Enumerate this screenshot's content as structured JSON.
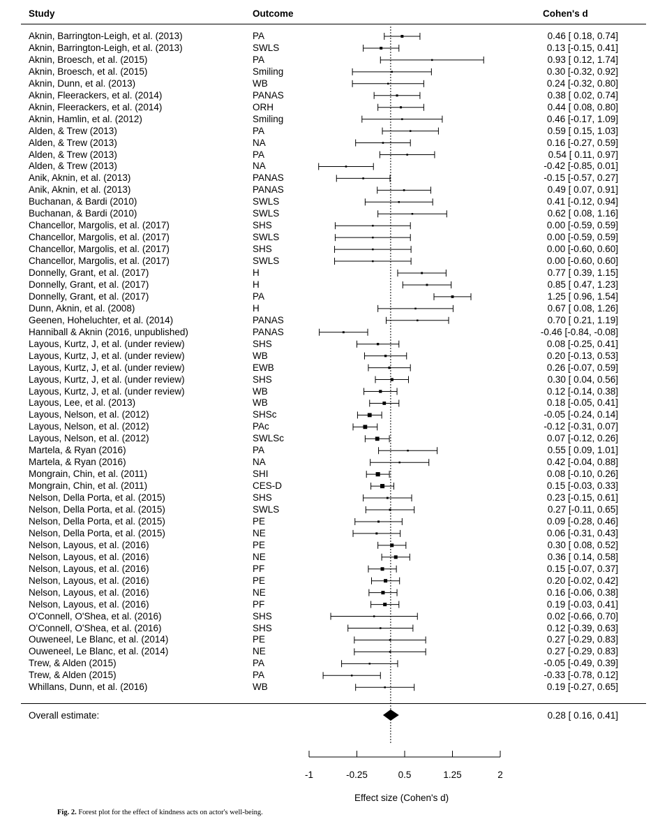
{
  "header": {
    "study": "Study",
    "outcome": "Outcome",
    "effect": "Cohen's d"
  },
  "chart_data": {
    "type": "forest",
    "xlabel": "Effect size (Cohen's d)",
    "xticks": [
      -1,
      -0.25,
      0.5,
      1.25,
      2
    ],
    "xtick_labels": [
      "-1",
      "-0.25",
      "0.5",
      "1.25",
      "2"
    ],
    "reference_line": 0.28,
    "rows": [
      {
        "study": "Aknin, Barrington-Leigh, et al. (2013)",
        "outcome": "PA",
        "d": 0.46,
        "lo": 0.18,
        "hi": 0.74,
        "ci": "0.46 [ 0.18,  0.74]"
      },
      {
        "study": "Aknin, Barrington-Leigh, et al. (2013)",
        "outcome": "SWLS",
        "d": 0.13,
        "lo": -0.15,
        "hi": 0.41,
        "ci": "0.13 [-0.15,  0.41]"
      },
      {
        "study": "Aknin, Broesch, et al. (2015)",
        "outcome": "PA",
        "d": 0.93,
        "lo": 0.12,
        "hi": 1.74,
        "ci": "0.93 [ 0.12,  1.74]"
      },
      {
        "study": "Aknin, Broesch, et al. (2015)",
        "outcome": "Smiling",
        "d": 0.3,
        "lo": -0.32,
        "hi": 0.92,
        "ci": "0.30 [-0.32,  0.92]"
      },
      {
        "study": "Aknin, Dunn, et al. (2013)",
        "outcome": "WB",
        "d": 0.24,
        "lo": -0.32,
        "hi": 0.8,
        "ci": "0.24 [-0.32,  0.80]"
      },
      {
        "study": "Aknin, Fleerackers, et al. (2014)",
        "outcome": "PANAS",
        "d": 0.38,
        "lo": 0.02,
        "hi": 0.74,
        "ci": "0.38 [ 0.02,  0.74]"
      },
      {
        "study": "Aknin, Fleerackers, et al. (2014)",
        "outcome": "ORH",
        "d": 0.44,
        "lo": 0.08,
        "hi": 0.8,
        "ci": "0.44 [ 0.08,  0.80]"
      },
      {
        "study": "Aknin, Hamlin, et al. (2012)",
        "outcome": "Smiling",
        "d": 0.46,
        "lo": -0.17,
        "hi": 1.09,
        "ci": "0.46 [-0.17,  1.09]"
      },
      {
        "study": "Alden, & Trew (2013)",
        "outcome": "PA",
        "d": 0.59,
        "lo": 0.15,
        "hi": 1.03,
        "ci": "0.59 [ 0.15,  1.03]"
      },
      {
        "study": "Alden, & Trew (2013)",
        "outcome": "NA",
        "d": 0.16,
        "lo": -0.27,
        "hi": 0.59,
        "ci": "0.16 [-0.27,  0.59]"
      },
      {
        "study": "Alden, & Trew (2013)",
        "outcome": "PA",
        "d": 0.54,
        "lo": 0.11,
        "hi": 0.97,
        "ci": "0.54 [ 0.11,  0.97]"
      },
      {
        "study": "Alden, & Trew (2013)",
        "outcome": "NA",
        "d": -0.42,
        "lo": -0.85,
        "hi": 0.01,
        "ci": "-0.42 [-0.85,  0.01]"
      },
      {
        "study": "Anik, Aknin, et al. (2013)",
        "outcome": "PANAS",
        "d": -0.15,
        "lo": -0.57,
        "hi": 0.27,
        "ci": "-0.15 [-0.57,  0.27]"
      },
      {
        "study": "Anik, Aknin, et al. (2013)",
        "outcome": "PANAS",
        "d": 0.49,
        "lo": 0.07,
        "hi": 0.91,
        "ci": "0.49 [ 0.07,  0.91]"
      },
      {
        "study": "Buchanan, & Bardi (2010)",
        "outcome": "SWLS",
        "d": 0.41,
        "lo": -0.12,
        "hi": 0.94,
        "ci": "0.41 [-0.12,  0.94]"
      },
      {
        "study": "Buchanan, & Bardi (2010)",
        "outcome": "SWLS",
        "d": 0.62,
        "lo": 0.08,
        "hi": 1.16,
        "ci": "0.62 [ 0.08,  1.16]"
      },
      {
        "study": "Chancellor, Margolis, et al. (2017)",
        "outcome": "SHS",
        "d": 0.0,
        "lo": -0.59,
        "hi": 0.59,
        "ci": "0.00 [-0.59,  0.59]"
      },
      {
        "study": "Chancellor, Margolis, et al. (2017)",
        "outcome": "SWLS",
        "d": 0.0,
        "lo": -0.59,
        "hi": 0.59,
        "ci": "0.00 [-0.59,  0.59]"
      },
      {
        "study": "Chancellor, Margolis, et al. (2017)",
        "outcome": "SHS",
        "d": 0.0,
        "lo": -0.6,
        "hi": 0.6,
        "ci": "0.00 [-0.60,  0.60]"
      },
      {
        "study": "Chancellor, Margolis, et al. (2017)",
        "outcome": "SWLS",
        "d": 0.0,
        "lo": -0.6,
        "hi": 0.6,
        "ci": "0.00 [-0.60,  0.60]"
      },
      {
        "study": "Donnelly, Grant, et al. (2017)",
        "outcome": "H",
        "d": 0.77,
        "lo": 0.39,
        "hi": 1.15,
        "ci": "0.77 [ 0.39,  1.15]"
      },
      {
        "study": "Donnelly, Grant, et al. (2017)",
        "outcome": "H",
        "d": 0.85,
        "lo": 0.47,
        "hi": 1.23,
        "ci": "0.85 [ 0.47,  1.23]"
      },
      {
        "study": "Donnelly, Grant, et al. (2017)",
        "outcome": "PA",
        "d": 1.25,
        "lo": 0.96,
        "hi": 1.54,
        "ci": "1.25 [ 0.96,  1.54]"
      },
      {
        "study": "Dunn, Aknin, et al. (2008)",
        "outcome": "H",
        "d": 0.67,
        "lo": 0.08,
        "hi": 1.26,
        "ci": "0.67 [ 0.08,  1.26]"
      },
      {
        "study": "Geenen, Hoheluchter, et al. (2014)",
        "outcome": "PANAS",
        "d": 0.7,
        "lo": 0.21,
        "hi": 1.19,
        "ci": "0.70 [ 0.21,  1.19]"
      },
      {
        "study": "Hanniball & Aknin (2016, unpublished)",
        "outcome": "PANAS",
        "d": -0.46,
        "lo": -0.84,
        "hi": -0.08,
        "ci": "-0.46 [-0.84, -0.08]"
      },
      {
        "study": "Layous, Kurtz, J, et al. (under review)",
        "outcome": "SHS",
        "d": 0.08,
        "lo": -0.25,
        "hi": 0.41,
        "ci": "0.08 [-0.25,  0.41]"
      },
      {
        "study": "Layous, Kurtz, J, et al. (under review)",
        "outcome": "WB",
        "d": 0.2,
        "lo": -0.13,
        "hi": 0.53,
        "ci": "0.20 [-0.13,  0.53]"
      },
      {
        "study": "Layous, Kurtz, J, et al. (under review)",
        "outcome": "EWB",
        "d": 0.26,
        "lo": -0.07,
        "hi": 0.59,
        "ci": "0.26 [-0.07,  0.59]"
      },
      {
        "study": "Layous, Kurtz, J, et al. (under review)",
        "outcome": "SHS",
        "d": 0.3,
        "lo": 0.04,
        "hi": 0.56,
        "ci": "0.30 [ 0.04,  0.56]"
      },
      {
        "study": "Layous, Kurtz, J, et al. (under review)",
        "outcome": "WB",
        "d": 0.12,
        "lo": -0.14,
        "hi": 0.38,
        "ci": "0.12 [-0.14,  0.38]"
      },
      {
        "study": "Layous, Lee, et al. (2013)",
        "outcome": "WB",
        "d": 0.18,
        "lo": -0.05,
        "hi": 0.41,
        "ci": "0.18 [-0.05,  0.41]"
      },
      {
        "study": "Layous, Nelson, et al. (2012)",
        "outcome": "SHSc",
        "d": -0.05,
        "lo": -0.24,
        "hi": 0.14,
        "ci": "-0.05 [-0.24,  0.14]"
      },
      {
        "study": "Layous, Nelson, et al. (2012)",
        "outcome": "PAc",
        "d": -0.12,
        "lo": -0.31,
        "hi": 0.07,
        "ci": "-0.12 [-0.31,  0.07]"
      },
      {
        "study": "Layous, Nelson, et al. (2012)",
        "outcome": "SWLSc",
        "d": 0.07,
        "lo": -0.12,
        "hi": 0.26,
        "ci": "0.07 [-0.12,  0.26]"
      },
      {
        "study": "Martela, & Ryan (2016)",
        "outcome": "PA",
        "d": 0.55,
        "lo": 0.09,
        "hi": 1.01,
        "ci": "0.55 [ 0.09,  1.01]"
      },
      {
        "study": "Martela, & Ryan (2016)",
        "outcome": "NA",
        "d": 0.42,
        "lo": -0.04,
        "hi": 0.88,
        "ci": "0.42 [-0.04,  0.88]"
      },
      {
        "study": "Mongrain, Chin, et al. (2011)",
        "outcome": "SHI",
        "d": 0.08,
        "lo": -0.1,
        "hi": 0.26,
        "ci": "0.08 [-0.10,  0.26]"
      },
      {
        "study": "Mongrain, Chin, et al. (2011)",
        "outcome": "CES-D",
        "d": 0.15,
        "lo": -0.03,
        "hi": 0.33,
        "ci": "0.15 [-0.03,  0.33]"
      },
      {
        "study": "Nelson, Della Porta, et al. (2015)",
        "outcome": "SHS",
        "d": 0.23,
        "lo": -0.15,
        "hi": 0.61,
        "ci": "0.23 [-0.15,  0.61]"
      },
      {
        "study": "Nelson, Della Porta, et al. (2015)",
        "outcome": "SWLS",
        "d": 0.27,
        "lo": -0.11,
        "hi": 0.65,
        "ci": "0.27 [-0.11,  0.65]"
      },
      {
        "study": "Nelson, Della Porta, et al. (2015)",
        "outcome": "PE",
        "d": 0.09,
        "lo": -0.28,
        "hi": 0.46,
        "ci": "0.09 [-0.28,  0.46]"
      },
      {
        "study": "Nelson, Della Porta, et al. (2015)",
        "outcome": "NE",
        "d": 0.06,
        "lo": -0.31,
        "hi": 0.43,
        "ci": "0.06 [-0.31,  0.43]"
      },
      {
        "study": "Nelson, Layous, et al. (2016)",
        "outcome": "PE",
        "d": 0.3,
        "lo": 0.08,
        "hi": 0.52,
        "ci": "0.30 [ 0.08,  0.52]"
      },
      {
        "study": "Nelson, Layous, et al. (2016)",
        "outcome": "NE",
        "d": 0.36,
        "lo": 0.14,
        "hi": 0.58,
        "ci": "0.36 [ 0.14,  0.58]"
      },
      {
        "study": "Nelson, Layous, et al. (2016)",
        "outcome": "PF",
        "d": 0.15,
        "lo": -0.07,
        "hi": 0.37,
        "ci": "0.15 [-0.07,  0.37]"
      },
      {
        "study": "Nelson, Layous, et al. (2016)",
        "outcome": "PE",
        "d": 0.2,
        "lo": -0.02,
        "hi": 0.42,
        "ci": "0.20 [-0.02,  0.42]"
      },
      {
        "study": "Nelson, Layous, et al. (2016)",
        "outcome": "NE",
        "d": 0.16,
        "lo": -0.06,
        "hi": 0.38,
        "ci": "0.16 [-0.06,  0.38]"
      },
      {
        "study": "Nelson, Layous, et al. (2016)",
        "outcome": "PF",
        "d": 0.19,
        "lo": -0.03,
        "hi": 0.41,
        "ci": "0.19 [-0.03,  0.41]"
      },
      {
        "study": "O'Connell, O'Shea, et al. (2016)",
        "outcome": "SHS",
        "d": 0.02,
        "lo": -0.66,
        "hi": 0.7,
        "ci": "0.02 [-0.66,  0.70]"
      },
      {
        "study": "O'Connell, O'Shea, et al. (2016)",
        "outcome": "SHS",
        "d": 0.12,
        "lo": -0.39,
        "hi": 0.63,
        "ci": "0.12 [-0.39,  0.63]"
      },
      {
        "study": "Ouweneel, Le Blanc, et al. (2014)",
        "outcome": "PE",
        "d": 0.27,
        "lo": -0.29,
        "hi": 0.83,
        "ci": "0.27 [-0.29,  0.83]"
      },
      {
        "study": "Ouweneel, Le Blanc, et al. (2014)",
        "outcome": "NE",
        "d": 0.27,
        "lo": -0.29,
        "hi": 0.83,
        "ci": "0.27 [-0.29,  0.83]"
      },
      {
        "study": "Trew, & Alden (2015)",
        "outcome": "PA",
        "d": -0.05,
        "lo": -0.49,
        "hi": 0.39,
        "ci": "-0.05 [-0.49,  0.39]"
      },
      {
        "study": "Trew, & Alden (2015)",
        "outcome": "PA",
        "d": -0.33,
        "lo": -0.78,
        "hi": 0.12,
        "ci": "-0.33 [-0.78,  0.12]"
      },
      {
        "study": "Whillans, Dunn, et al. (2016)",
        "outcome": "WB",
        "d": 0.19,
        "lo": -0.27,
        "hi": 0.65,
        "ci": "0.19 [-0.27,  0.65]"
      }
    ],
    "overall": {
      "label": "Overall estimate:",
      "d": 0.28,
      "lo": 0.16,
      "hi": 0.41,
      "ci": "0.28 [ 0.16,  0.41]"
    }
  },
  "caption": {
    "label": "Fig. 2.",
    "text": "Forest plot for the effect of kindness acts on actor's well-being."
  }
}
